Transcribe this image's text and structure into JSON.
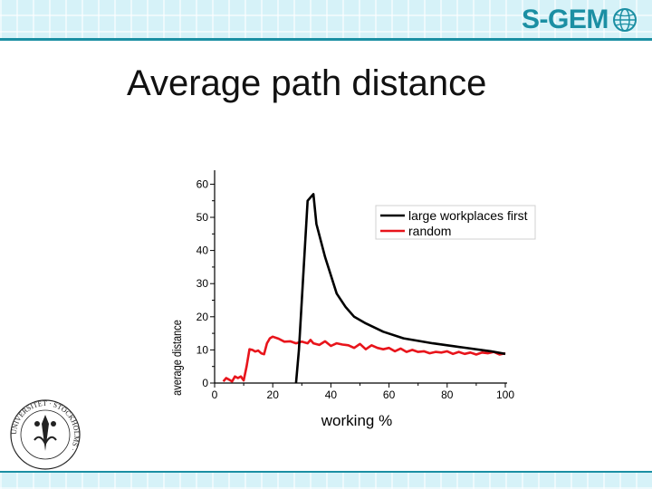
{
  "slide": {
    "title": "Average path distance",
    "logo_text": "S-GEM",
    "seal_text": "UNIVERSITET · STOCKHOLMS · "
  },
  "colors": {
    "accent": "#1b8fa3",
    "band": "#d6f2f8",
    "series_black": "#000000",
    "series_red": "#e8141b"
  },
  "chart_data": {
    "type": "line",
    "xlabel": "working %",
    "ylabel": "average distance",
    "xlim": [
      0,
      100
    ],
    "ylim": [
      0,
      65
    ],
    "xticks": [
      0,
      20,
      40,
      60,
      80,
      100
    ],
    "yticks": [
      0,
      10,
      20,
      30,
      40,
      50,
      60
    ],
    "legend_position": "top-right",
    "series": [
      {
        "name": "large workplaces first",
        "color": "#000000",
        "x": [
          28,
          29,
          30,
          31,
          32,
          33,
          34,
          35,
          38,
          42,
          45,
          48,
          52,
          58,
          65,
          75,
          85,
          95,
          100
        ],
        "y": [
          0,
          10,
          25,
          40,
          55,
          56,
          57,
          48,
          38,
          27,
          23,
          20,
          18,
          15.5,
          13.5,
          12,
          10.8,
          9.6,
          8.8
        ]
      },
      {
        "name": "random",
        "color": "#e8141b",
        "x": [
          3,
          4,
          5,
          6,
          7,
          8,
          9,
          10,
          11,
          12,
          13,
          14,
          15,
          16,
          17,
          18,
          19,
          20,
          22,
          24,
          26,
          28,
          30,
          32,
          33,
          34,
          36,
          38,
          40,
          42,
          44,
          46,
          48,
          50,
          52,
          54,
          56,
          58,
          60,
          62,
          64,
          66,
          68,
          70,
          72,
          74,
          76,
          78,
          80,
          82,
          84,
          86,
          88,
          90,
          92,
          94,
          96,
          98,
          100
        ],
        "y": [
          0.5,
          1.5,
          1.0,
          0.5,
          2.0,
          1.5,
          2.0,
          0.8,
          5.0,
          10.2,
          10.0,
          9.5,
          9.8,
          9.0,
          8.7,
          12.0,
          13.5,
          14.0,
          13.4,
          12.5,
          12.6,
          12.0,
          12.5,
          12.0,
          13.0,
          12.0,
          11.5,
          12.6,
          11.2,
          12.0,
          11.6,
          11.4,
          10.6,
          11.8,
          10.2,
          11.4,
          10.6,
          10.2,
          10.6,
          9.6,
          10.4,
          9.4,
          10.0,
          9.4,
          9.6,
          9.0,
          9.4,
          9.2,
          9.6,
          8.8,
          9.4,
          8.8,
          9.2,
          8.6,
          9.2,
          9.0,
          9.4,
          8.6,
          9.0
        ]
      }
    ]
  }
}
